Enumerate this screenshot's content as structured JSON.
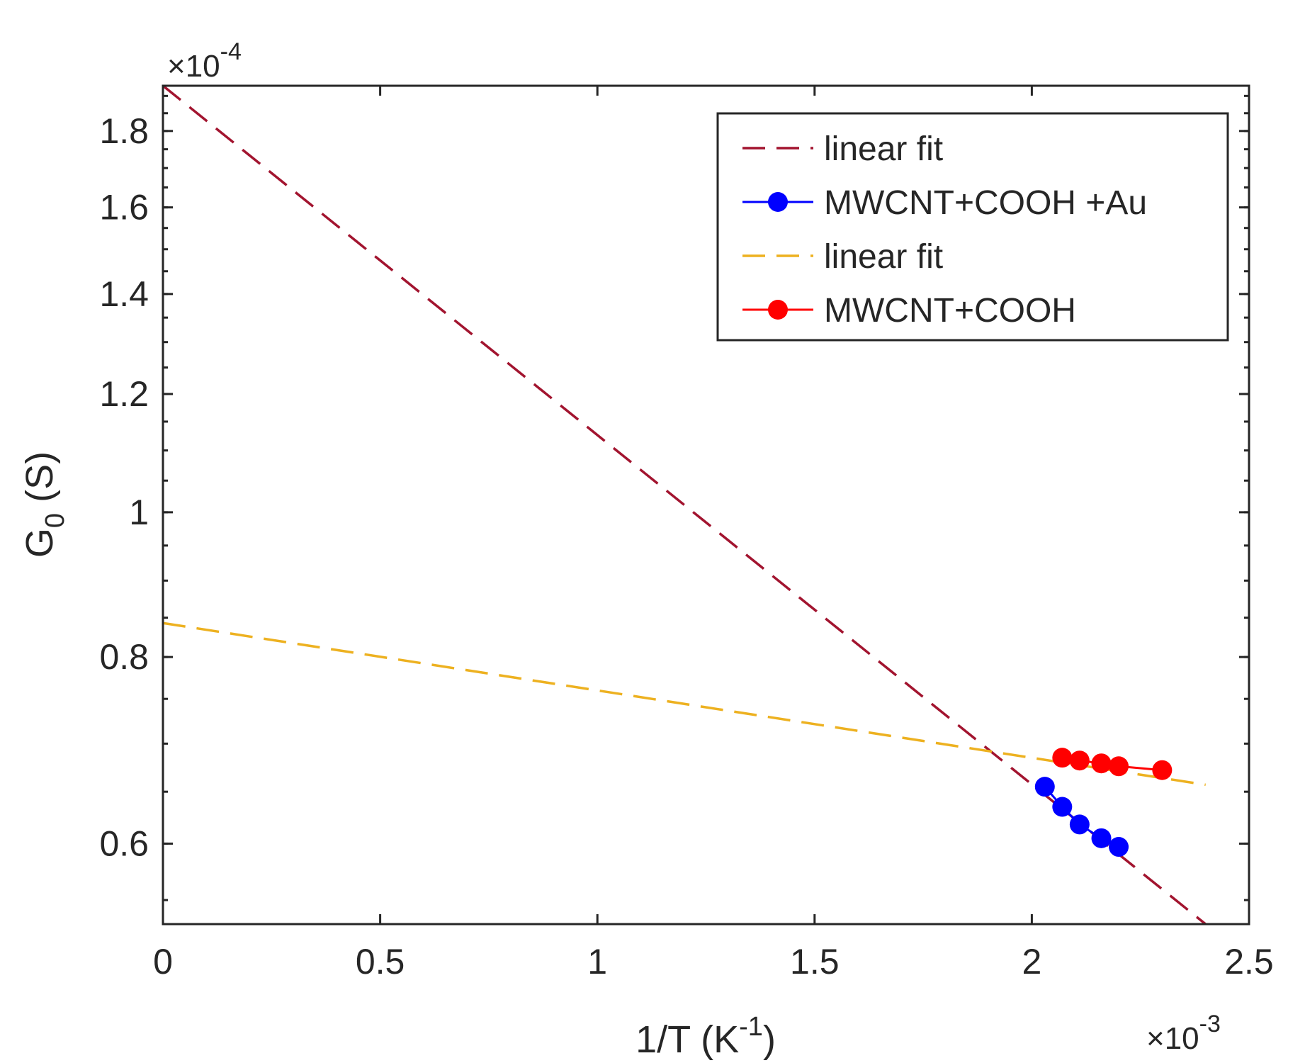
{
  "chart_data": {
    "type": "scatter",
    "title": "",
    "xlabel": "1/T (K",
    "xlabel_sup": "-1",
    "xlabel_tail": ")",
    "ylabel": "G",
    "ylabel_sub": "0",
    "ylabel_tail": "  (S)",
    "x_multiplier": "×10",
    "x_multiplier_exp": "-3",
    "y_multiplier": "×10",
    "y_multiplier_exp": "-4",
    "y_scale": "log",
    "xlim": [
      0,
      2.5
    ],
    "ylim": [
      0.53,
      1.93
    ],
    "x_ticks": [
      0,
      0.5,
      1,
      1.5,
      2,
      2.5
    ],
    "x_tick_labels": [
      "0",
      "0.5",
      "1",
      "1.5",
      "2",
      "2.5"
    ],
    "y_ticks": [
      0.6,
      0.8,
      1,
      1.2,
      1.4,
      1.6,
      1.8
    ],
    "y_tick_labels": [
      "0.6",
      "0.8",
      "1",
      "1.2",
      "1.4",
      "1.6",
      "1.8"
    ],
    "legend_position": "top-right",
    "series": [
      {
        "name": "linear fit",
        "kind": "dashed-line",
        "color": "#A2142F",
        "x": [
          0,
          2.4
        ],
        "y": [
          1.93,
          0.53
        ]
      },
      {
        "name": "MWCNT+COOH +Au",
        "kind": "line-markers",
        "color": "#0000FF",
        "x": [
          2.03,
          2.07,
          2.11,
          2.16,
          2.2
        ],
        "y": [
          0.655,
          0.635,
          0.618,
          0.605,
          0.597
        ]
      },
      {
        "name": "linear fit",
        "kind": "dashed-line",
        "color": "#EDB120",
        "x": [
          0,
          2.4
        ],
        "y": [
          0.843,
          0.657
        ]
      },
      {
        "name": "MWCNT+COOH",
        "kind": "line-markers",
        "color": "#FF0000",
        "x": [
          2.07,
          2.11,
          2.16,
          2.2,
          2.3
        ],
        "y": [
          0.685,
          0.682,
          0.679,
          0.676,
          0.672
        ]
      }
    ]
  }
}
